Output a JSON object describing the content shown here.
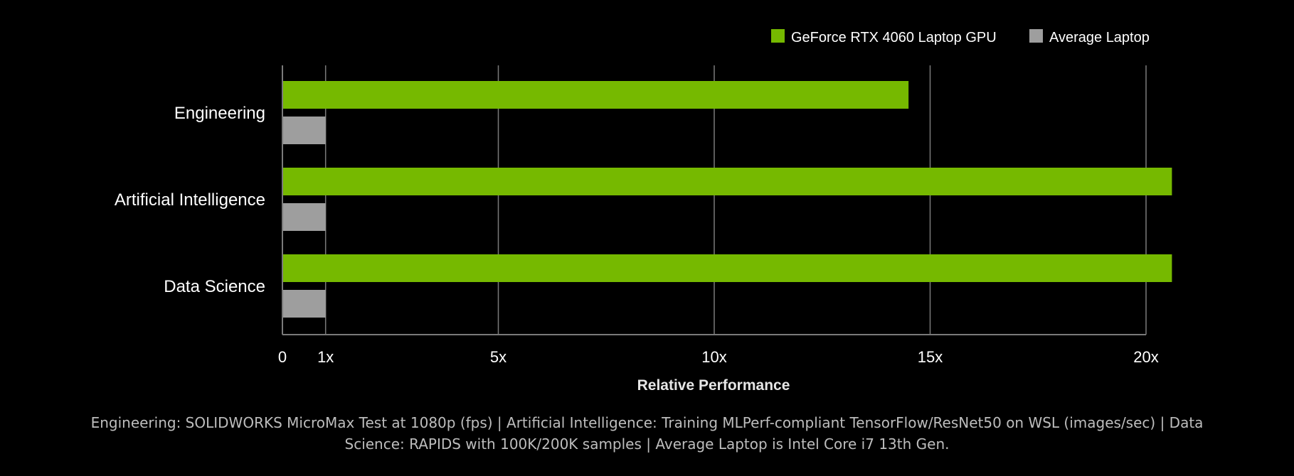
{
  "colors": {
    "background": "#000000",
    "primary_bar": "#76b900",
    "secondary_bar": "#9e9e9e",
    "grid": "#7a7a7a",
    "text": "#ffffff",
    "footnote_text": "#bdbdbd"
  },
  "chart_data": {
    "type": "bar",
    "orientation": "horizontal",
    "title": "",
    "xlabel": "Relative Performance",
    "ylabel": "",
    "categories": [
      "Engineering",
      "Artificial Intelligence",
      "Data Science"
    ],
    "series": [
      {
        "name": "GeForce RTX 4060 Laptop GPU",
        "color": "#76b900",
        "values": [
          14.5,
          20.6,
          20.6
        ]
      },
      {
        "name": "Average Laptop",
        "color": "#9e9e9e",
        "values": [
          1,
          1,
          1
        ]
      }
    ],
    "xlim": [
      0,
      20
    ],
    "xticks": [
      0,
      1,
      5,
      10,
      15,
      20
    ],
    "xtick_labels": [
      "0",
      "1x",
      "5x",
      "10x",
      "15x",
      "20x"
    ],
    "grid": true,
    "legend_position": "top-right"
  },
  "footnote": {
    "line1": "Engineering: SOLIDWORKS MicroMax Test at 1080p (fps) | Artificial Intelligence: Training MLPerf-compliant TensorFlow/ResNet50 on WSL (images/sec) | Data",
    "line2": "Science: RAPIDS with 100K/200K samples |  Average Laptop is Intel Core i7 13th Gen."
  }
}
